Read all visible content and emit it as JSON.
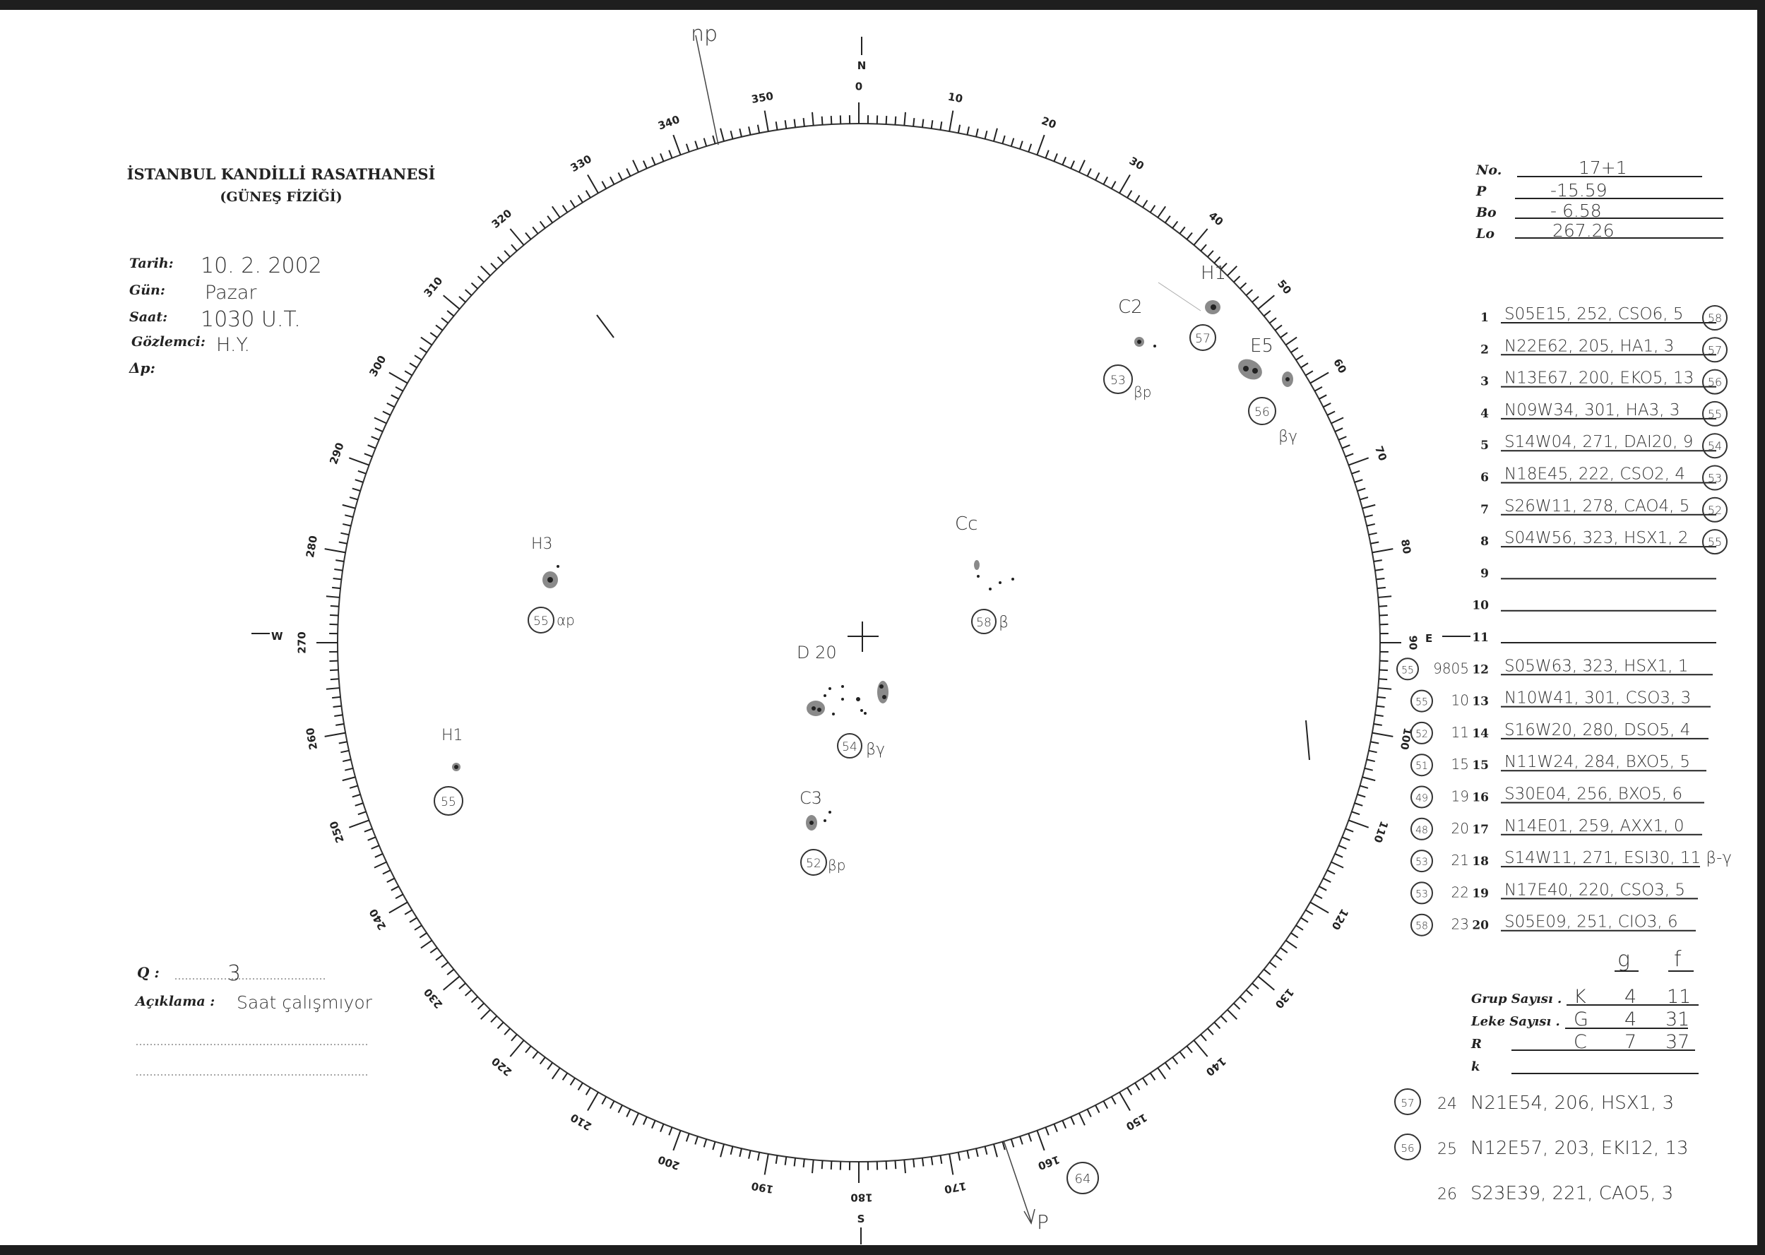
{
  "header": {
    "institution": "İSTANBUL KANDİLLİ RASATHANESİ",
    "department": "(GÜNEŞ FİZİĞİ)"
  },
  "observation": {
    "date_label": "Tarih:",
    "date_value": "10. 2. 2002",
    "day_label": "Gün:",
    "day_value": "Pazar",
    "time_label": "Saat:",
    "time_value": "1030 U.T.",
    "observer_label": "Gözlemci:",
    "observer_value": "H.Y.",
    "dp_label": "Δp:"
  },
  "parameters": {
    "no_label": "No.",
    "no_value": "17+1",
    "p_label": "P",
    "p_value": "-15.59",
    "bo_label": "Bo",
    "bo_value": "- 6.58",
    "lo_label": "Lo",
    "lo_value": "267.26"
  },
  "groups": [
    {
      "n": "1",
      "text": "S05E15, 252, CSO6, 5",
      "circle": "58",
      "pre": "",
      "prenum": ""
    },
    {
      "n": "2",
      "text": "N22E62, 205, HA1, 3",
      "circle": "57",
      "pre": "",
      "prenum": ""
    },
    {
      "n": "3",
      "text": "N13E67, 200, EKO5, 13",
      "circle": "56",
      "pre": "",
      "prenum": ""
    },
    {
      "n": "4",
      "text": "N09W34, 301, HA3, 3",
      "circle": "55",
      "pre": "",
      "prenum": ""
    },
    {
      "n": "5",
      "text": "S14W04, 271, DAI20, 9",
      "circle": "54",
      "pre": "",
      "prenum": ""
    },
    {
      "n": "6",
      "text": "N18E45, 222, CSO2, 4",
      "circle": "53",
      "pre": "",
      "prenum": ""
    },
    {
      "n": "7",
      "text": "S26W11, 278, CAO4, 5",
      "circle": "52",
      "pre": "",
      "prenum": ""
    },
    {
      "n": "8",
      "text": "S04W56, 323, HSX1, 2",
      "circle": "55",
      "pre": "",
      "prenum": ""
    },
    {
      "n": "9",
      "text": "",
      "circle": "",
      "pre": "",
      "prenum": ""
    },
    {
      "n": "10",
      "text": "",
      "circle": "",
      "pre": "",
      "prenum": ""
    },
    {
      "n": "11",
      "text": "",
      "circle": "",
      "pre": "",
      "prenum": ""
    },
    {
      "n": "12",
      "text": "S05W63, 323, HSX1, 1",
      "circle": "",
      "pre": "55",
      "prenum": "9805"
    },
    {
      "n": "13",
      "text": "N10W41, 301, CSO3, 3",
      "circle": "",
      "pre": "55",
      "prenum": "10"
    },
    {
      "n": "14",
      "text": "S16W20, 280, DSO5, 4",
      "circle": "",
      "pre": "52",
      "prenum": "11"
    },
    {
      "n": "15",
      "text": "N11W24, 284, BXO5, 5",
      "circle": "",
      "pre": "51",
      "prenum": "15"
    },
    {
      "n": "16",
      "text": "S30E04, 256, BXO5, 6",
      "circle": "",
      "pre": "49",
      "prenum": "19"
    },
    {
      "n": "17",
      "text": "N14E01, 259, AXX1, 0",
      "circle": "",
      "pre": "48",
      "prenum": "20"
    },
    {
      "n": "18",
      "text": "S14W11, 271, ESI30, 11 β-γ",
      "circle": "",
      "pre": "53",
      "prenum": "21"
    },
    {
      "n": "19",
      "text": "N17E40, 220, CSO3, 5",
      "circle": "",
      "pre": "53",
      "prenum": "22"
    },
    {
      "n": "20",
      "text": "S05E09, 251, CIO3, 6",
      "circle": "",
      "pre": "58",
      "prenum": "23"
    }
  ],
  "summary": {
    "col_g": "g",
    "col_f": "f",
    "group_count_label": "Grup Sayısı .",
    "group_count": [
      "K",
      "4",
      "11"
    ],
    "spot_count_label": "Leke Sayısı .",
    "spot_count": [
      "G",
      "4",
      "31"
    ],
    "r_label": "R",
    "r_values": [
      "C",
      "7",
      "37"
    ],
    "k_label": "k"
  },
  "extra_groups": [
    {
      "circle": "57",
      "n": "24",
      "text": "N21E54, 206, HSX1, 3"
    },
    {
      "circle": "56",
      "n": "25",
      "text": "N12E57, 203, EKI12, 13"
    },
    {
      "circle": "",
      "n": "26",
      "text": "S23E39, 221, CAO5, 3"
    }
  ],
  "notes": {
    "q_label": "Q :",
    "q_value": "3",
    "remark_label": "Açıklama :",
    "remark_value": "Saat çalışmıyor"
  },
  "dial": {
    "labels": [
      "0",
      "10",
      "20",
      "30",
      "40",
      "50",
      "60",
      "70",
      "80",
      "90",
      "100",
      "110",
      "120",
      "130",
      "140",
      "150",
      "160",
      "170",
      "180",
      "190",
      "200",
      "210",
      "220",
      "230",
      "240",
      "250",
      "260",
      "270",
      "280",
      "290",
      "300",
      "310",
      "320",
      "330",
      "340",
      "350"
    ],
    "north": "N",
    "south": "S",
    "east": "E",
    "west": "W",
    "pole_top": "np",
    "pole_bottom": "P"
  },
  "drawing": {
    "groups": [
      {
        "label": "H1",
        "circle": "57",
        "class": ""
      },
      {
        "label": "C2",
        "circle": "53",
        "class": "βp"
      },
      {
        "label": "E5",
        "circle": "56",
        "class": "βγ"
      },
      {
        "label": "Cc",
        "circle": "58",
        "class": "β"
      },
      {
        "label": "D 20",
        "circle": "54",
        "class": "βγ"
      },
      {
        "label": "H3",
        "circle": "55",
        "class": "αp"
      },
      {
        "label": "H1",
        "circle": "55",
        "class": ""
      },
      {
        "label": "C3",
        "circle": "52",
        "class": "βp"
      }
    ],
    "limb_circle": "64"
  }
}
